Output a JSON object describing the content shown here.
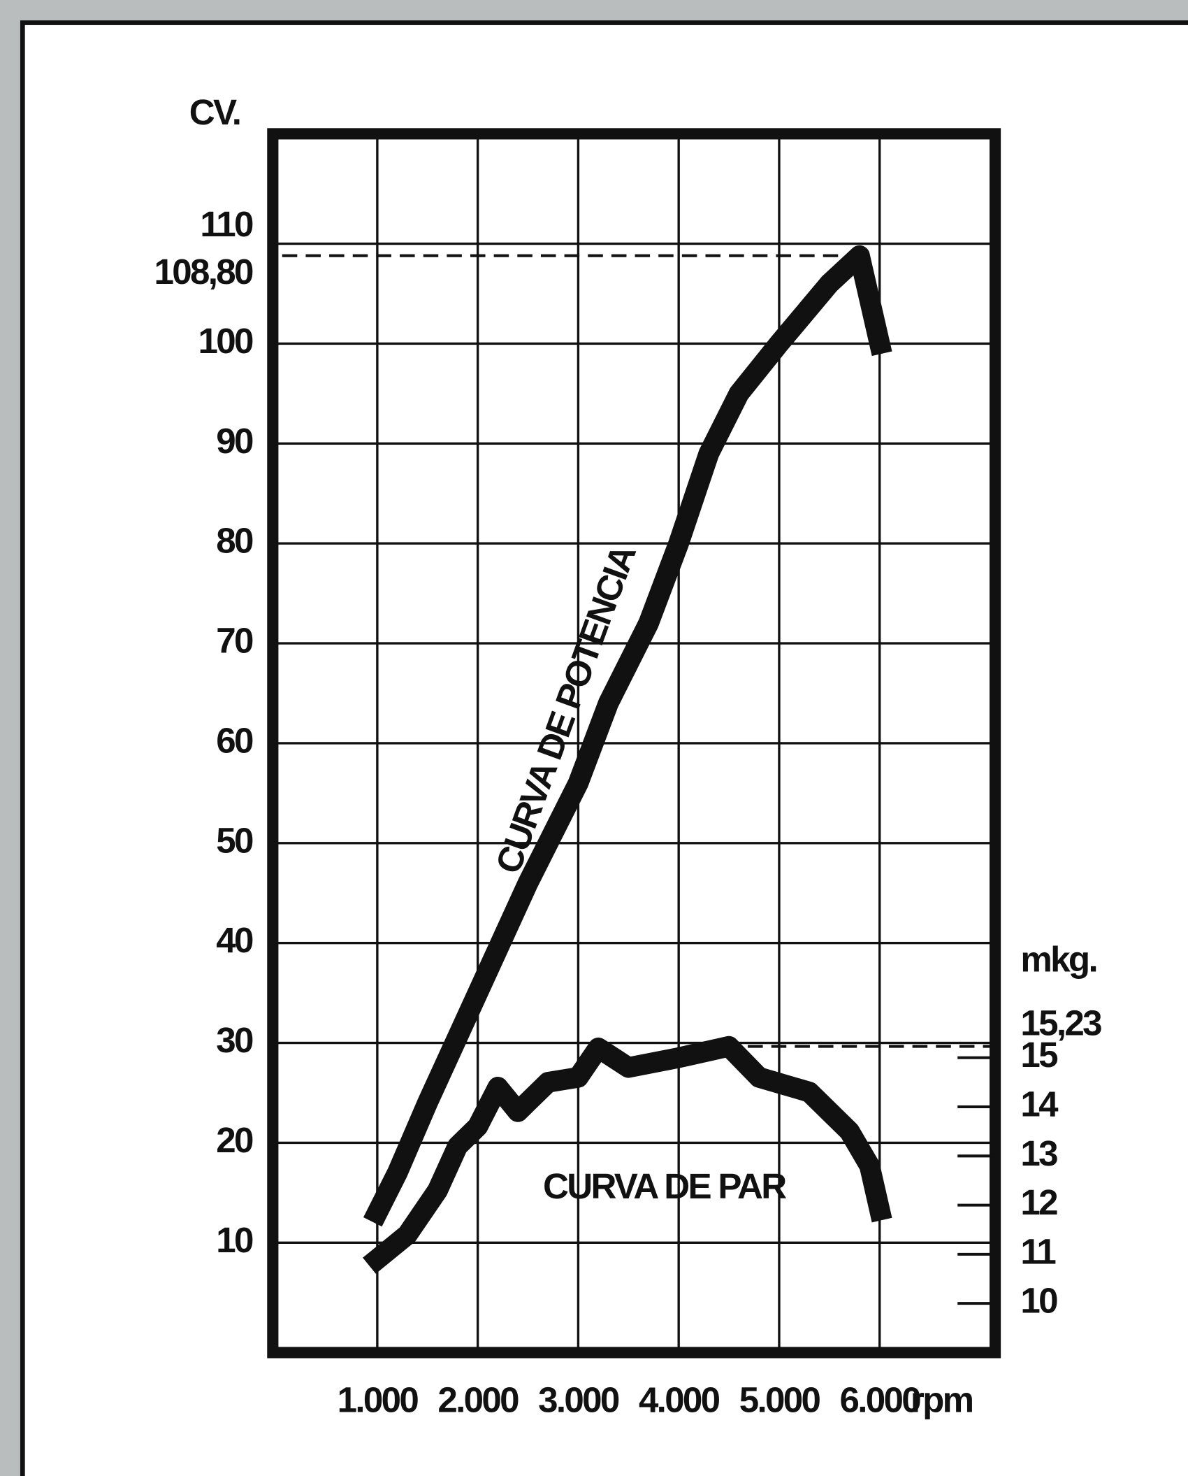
{
  "chart_data": {
    "type": "line",
    "y_label": "CV.",
    "y2_label": "mkg.",
    "x_label": "rpm",
    "xlim": [
      -40,
      7150
    ],
    "ylim": [
      -1,
      121
    ],
    "y2lim": [
      9,
      33.8
    ],
    "xticks": [
      {
        "value": 1000,
        "label": "1.000"
      },
      {
        "value": 2000,
        "label": "2.000"
      },
      {
        "value": 3000,
        "label": "3.000"
      },
      {
        "value": 4000,
        "label": "4.000"
      },
      {
        "value": 5000,
        "label": "5.000"
      },
      {
        "value": 6000,
        "label": "6.000"
      }
    ],
    "yticks": [
      10,
      20,
      30,
      40,
      50,
      60,
      70,
      80,
      90,
      100,
      110
    ],
    "y2ticks": [
      10,
      11,
      12,
      13,
      14,
      15
    ],
    "grid": true,
    "reference_lines": [
      {
        "axis": "y",
        "value": 108.8,
        "label": "108,80"
      },
      {
        "axis": "y2",
        "value": 15.23,
        "label": "15,23"
      }
    ],
    "series": [
      {
        "name": "CURVA DE POTENCIA",
        "color": "#111111",
        "x": [
          1000,
          1200,
          1500,
          2000,
          2500,
          3000,
          3300,
          3700,
          4000,
          4300,
          4600,
          5000,
          5500,
          5800,
          6000
        ],
        "values": [
          13,
          17,
          24,
          35,
          46,
          56,
          64,
          72,
          80,
          89,
          95,
          100,
          106,
          108.8,
          100
        ]
      },
      {
        "name": "CURVA DE PAR",
        "color": "#111111",
        "axis": "y2",
        "x": [
          1000,
          1300,
          1600,
          1800,
          2000,
          2200,
          2400,
          2700,
          3000,
          3200,
          3500,
          4000,
          4500,
          4800,
          5300,
          5700,
          5900,
          6000
        ],
        "values": [
          10.9,
          11.4,
          12.3,
          13.2,
          13.6,
          14.4,
          13.9,
          14.5,
          14.6,
          15.2,
          14.8,
          15.0,
          15.23,
          14.6,
          14.3,
          13.5,
          12.8,
          11.9
        ]
      }
    ]
  }
}
